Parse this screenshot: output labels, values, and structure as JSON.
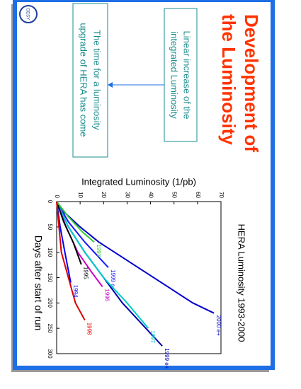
{
  "slide": {
    "title": [
      "Development of",
      "the Luminosity"
    ],
    "logo": "DESY",
    "box1": [
      "Linear increase of the",
      "integrated Luminosity"
    ],
    "box2": [
      "The time for a luminosity",
      "upgrade of HERA has come"
    ]
  },
  "chart_data": {
    "type": "line",
    "title": "HERA Luminosity 1993-2000",
    "x_label": "Days after start of run",
    "y_label": "Integrated Luminosity (1/pb)",
    "xlim": [
      0,
      300
    ],
    "xticks": [
      0,
      50,
      100,
      150,
      200,
      250,
      300
    ],
    "ylim": [
      0,
      70
    ],
    "yticks": [
      0,
      10,
      20,
      30,
      40,
      50,
      60,
      70
    ],
    "series": [
      {
        "name": "2000 e+",
        "color": "#0000cc",
        "x": [
          0,
          20,
          50,
          80,
          110,
          140,
          170,
          200,
          220
        ],
        "values": [
          0,
          3,
          10,
          18,
          28,
          38,
          48,
          58,
          67
        ]
      },
      {
        "name": "1999 e+",
        "color": "#0000aa",
        "x": [
          0,
          50,
          100,
          150,
          200,
          250,
          285
        ],
        "values": [
          0,
          5,
          12,
          20,
          28,
          38,
          45
        ]
      },
      {
        "name": "1999 e-",
        "color": "#1a1aff",
        "x": [
          0,
          40,
          80,
          110,
          130
        ],
        "values": [
          0,
          5,
          12,
          18,
          22
        ]
      },
      {
        "name": "1997",
        "color": "#00cccc",
        "x": [
          0,
          50,
          100,
          150,
          200,
          250
        ],
        "values": [
          0,
          5,
          12,
          20,
          30,
          39
        ]
      },
      {
        "name": "1996",
        "color": "#cc00cc",
        "x": [
          0,
          50,
          100,
          140,
          168
        ],
        "values": [
          0,
          4,
          9,
          15,
          19.5
        ]
      },
      {
        "name": "1995",
        "color": "#000000",
        "x": [
          0,
          40,
          80,
          124
        ],
        "values": [
          0,
          3,
          7,
          10.5
        ]
      },
      {
        "name": "1994",
        "color": "#0000ff",
        "x": [
          0,
          50,
          100,
          160
        ],
        "values": [
          0,
          1.5,
          3.5,
          6
        ]
      },
      {
        "name": "1993",
        "color": "#33cc33",
        "x": [
          0,
          30,
          60,
          80
        ],
        "values": [
          0,
          5,
          11,
          16
        ]
      },
      {
        "name": "1998",
        "color": "#dd0000",
        "x": [
          0,
          100,
          150,
          200,
          234
        ],
        "values": [
          0,
          2,
          5,
          8,
          12
        ]
      }
    ]
  }
}
